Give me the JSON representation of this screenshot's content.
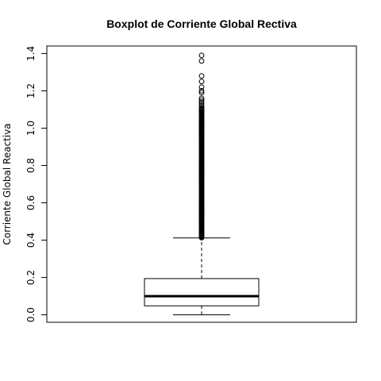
{
  "chart_data": {
    "type": "boxplot",
    "title": "Boxplot de Corriente Global Rectiva",
    "ylabel": "Corriente Global Reactiva",
    "xlabel": "",
    "ylim": [
      -0.04,
      1.44
    ],
    "yticks": [
      0.0,
      0.2,
      0.4,
      0.6,
      0.8,
      1.0,
      1.2,
      1.4
    ],
    "ytick_labels": [
      "0.0",
      "0.2",
      "0.4",
      "0.6",
      "0.8",
      "1.0",
      "1.2",
      "1.4"
    ],
    "grid": false,
    "box": {
      "min": 0.0,
      "q1": 0.048,
      "median": 0.1,
      "q3": 0.194,
      "whisker_high": 0.412
    },
    "outliers_dense_range": [
      0.413,
      1.1
    ],
    "outliers_sparse": [
      1.105,
      1.11,
      1.12,
      1.13,
      1.14,
      1.15,
      1.16,
      1.19,
      1.2,
      1.22,
      1.25,
      1.28,
      1.36,
      1.39
    ]
  }
}
